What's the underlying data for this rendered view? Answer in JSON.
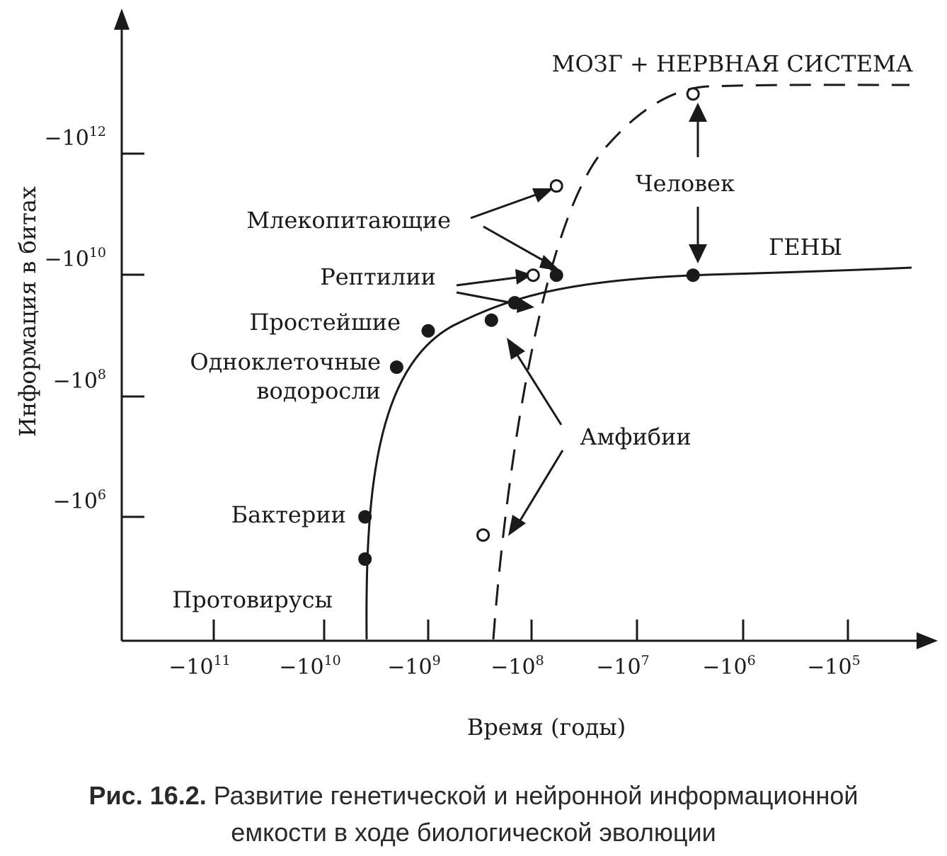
{
  "chart_data": {
    "type": "line",
    "xlabel": "Время (годы)",
    "ylabel": "Информация в битах",
    "x_ticks": [
      {
        "base": "−10",
        "exp": "11"
      },
      {
        "base": "−10",
        "exp": "10"
      },
      {
        "base": "−10",
        "exp": "9"
      },
      {
        "base": "−10",
        "exp": "8"
      },
      {
        "base": "−10",
        "exp": "7"
      },
      {
        "base": "−10",
        "exp": "6"
      },
      {
        "base": "−10",
        "exp": "5"
      }
    ],
    "y_ticks": [
      {
        "base": "−10",
        "exp": "12"
      },
      {
        "base": "−10",
        "exp": "10"
      },
      {
        "base": "−10",
        "exp": "8"
      },
      {
        "base": "−10",
        "exp": "6"
      }
    ],
    "x_scale": "log (years before present)",
    "y_scale": "log",
    "grid": false,
    "series": [
      {
        "name": "ГЕНЫ",
        "style": "solid",
        "marker": "filled",
        "points": [
          {
            "label": "Протовирусы",
            "x": -4000000000.0,
            "y": 200000.0
          },
          {
            "label": "Бактерии",
            "x": -4000000000.0,
            "y": 1000000.0
          },
          {
            "label": "Одноклеточные водоросли",
            "x": -2000000000.0,
            "y": 300000000.0
          },
          {
            "label": "Простейшие",
            "x": -1000000000.0,
            "y": 1200000000.0
          },
          {
            "label": "Амфибии",
            "x": -250000000.0,
            "y": 1800000000.0
          },
          {
            "label": "Рептилии",
            "x": -150000000.0,
            "y": 3500000000.0
          },
          {
            "label": "Млекопитающие",
            "x": -60000000.0,
            "y": 10000000000.0
          },
          {
            "label": "Человек",
            "x": -3000000.0,
            "y": 10000000000.0
          }
        ]
      },
      {
        "name": "МОЗГ + НЕРВНАЯ СИСТЕМА",
        "style": "dashed",
        "marker": "open",
        "points": [
          {
            "label": "Амфибии",
            "x": -300000000.0,
            "y": 500000.0
          },
          {
            "label": "Рептилии",
            "x": -100000000.0,
            "y": 10000000000.0
          },
          {
            "label": "Млекопитающие",
            "x": -60000000.0,
            "y": 300000000000.0
          },
          {
            "label": "Человек",
            "x": -3000000.0,
            "y": 10000000000000.0
          }
        ]
      }
    ],
    "annotations": {
      "brain": "МОЗГ + НЕРВНАЯ СИСТЕМА",
      "genes": "ГЕНЫ",
      "human": "Человек",
      "mammals": "Млекопитающие",
      "reptiles": "Рептилии",
      "protozoa": "Простейшие",
      "algae_line1": "Одноклеточные",
      "algae_line2": "водоросли",
      "amphibians": "Амфибии",
      "bacteria": "Бактерии",
      "protoviruses": "Протовирусы"
    }
  },
  "caption": {
    "label": "Рис. 16.2.",
    "line1": "Развитие генетической и нейронной информационной",
    "line2": "емкости в ходе биологической эволюции"
  }
}
